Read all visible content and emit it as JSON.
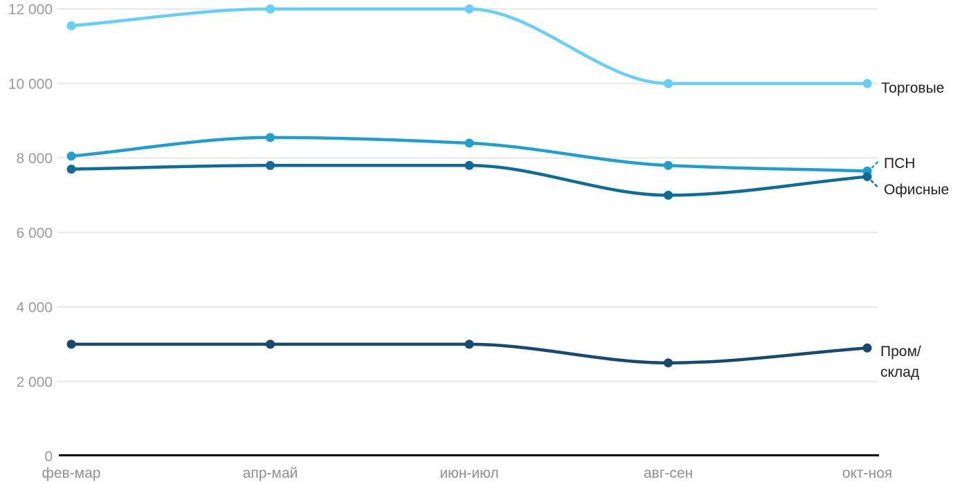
{
  "chart_data": {
    "type": "line",
    "title": "",
    "xlabel": "",
    "ylabel": "",
    "categories": [
      "фев-мар",
      "апр-май",
      "июн-июл",
      "авг-сен",
      "окт-ноя"
    ],
    "series": [
      {
        "name": "Торговые",
        "color": "#64cff7",
        "values": [
          11550,
          12000,
          12000,
          10000,
          10000
        ],
        "label_lines": [
          "Торговые"
        ]
      },
      {
        "name": "ПСН",
        "color": "#219fcc",
        "values": [
          8050,
          8550,
          8400,
          7800,
          7650
        ],
        "label_lines": [
          "ПСН"
        ]
      },
      {
        "name": "Офисные",
        "color": "#0d6d96",
        "values": [
          7700,
          7800,
          7800,
          7000,
          7500
        ],
        "label_lines": [
          "Офисные"
        ]
      },
      {
        "name": "Пром/склад",
        "color": "#174a6e",
        "values": [
          3000,
          3000,
          3000,
          2500,
          2900
        ],
        "label_lines": [
          "Пром/",
          "склад"
        ]
      }
    ],
    "y_ticks": [
      0,
      2000,
      4000,
      6000,
      8000,
      10000,
      12000
    ],
    "y_tick_labels": [
      "0",
      "2 000",
      "4 000",
      "6 000",
      "8 000",
      "10 000",
      "12 000"
    ],
    "ylim": [
      0,
      12000
    ],
    "grid": true,
    "curve": "monotone",
    "legend_position": "line-end-right"
  },
  "colors": {
    "background": "#ffffff",
    "gridline": "#e7e7e7",
    "axis": "#000000",
    "y_tick_text": "#9b9b9b",
    "x_tick_text": "#8f8f8f",
    "series_label_text": "#212121"
  }
}
